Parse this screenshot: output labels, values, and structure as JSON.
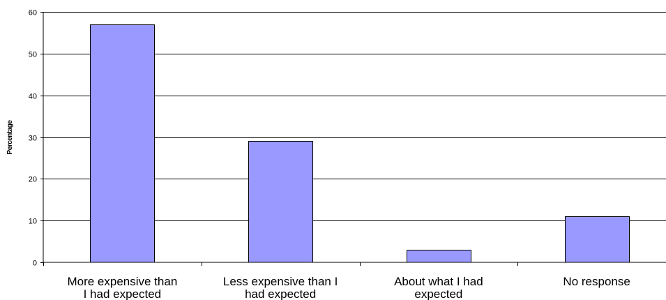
{
  "chart_data": {
    "type": "bar",
    "categories": [
      [
        "More expensive than",
        "I had expected"
      ],
      [
        "Less expensive than I",
        "had expected"
      ],
      [
        "About what I had",
        "expected"
      ],
      [
        "No response"
      ]
    ],
    "values": [
      57,
      29,
      3,
      11
    ],
    "ylabel": "Percentage",
    "ylim": [
      0,
      60
    ],
    "yticks": [
      0,
      10,
      20,
      30,
      40,
      50,
      60
    ],
    "grid": true,
    "bar_color": "#9999ff",
    "bar_stroke": "#000000",
    "gridline_color": "#000000"
  }
}
